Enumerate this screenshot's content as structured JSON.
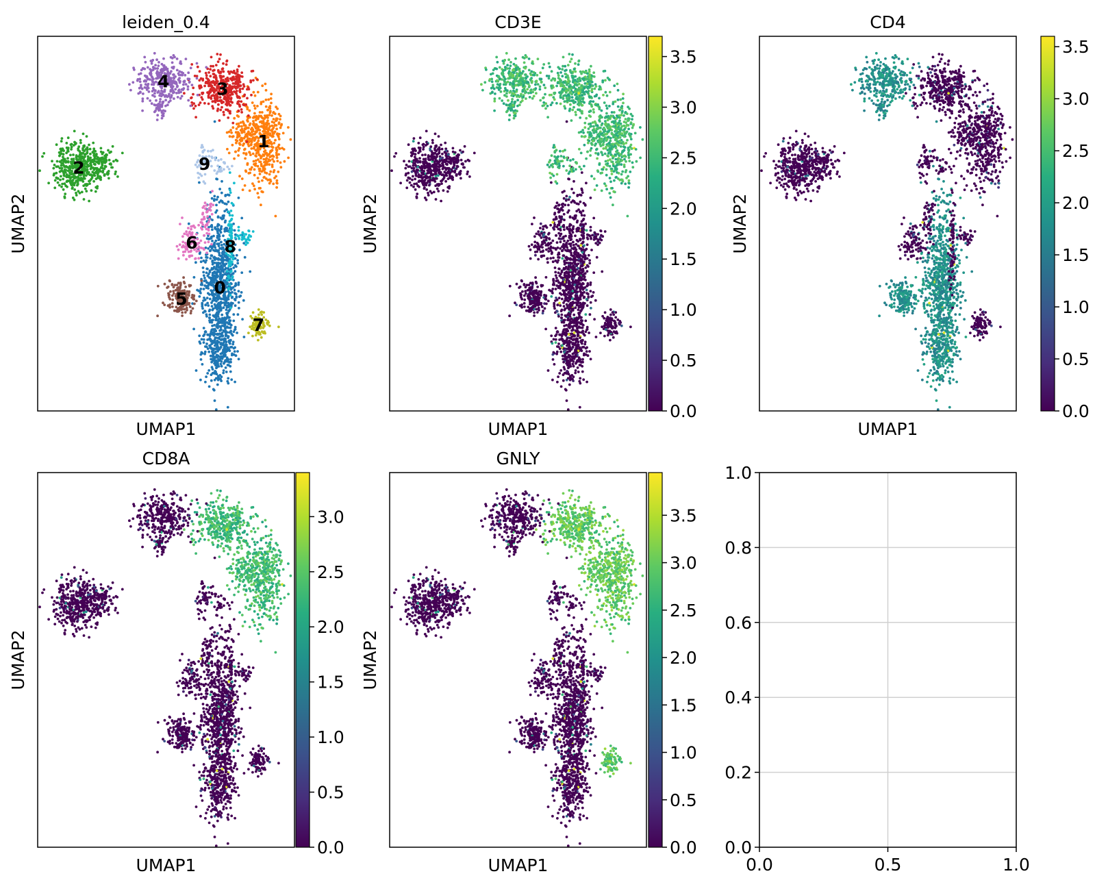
{
  "chart_data": [
    {
      "type": "scatter",
      "title": "leiden_0.4",
      "xlabel": "UMAP1",
      "ylabel": "UMAP2",
      "color_by": "cluster",
      "cluster_labels": [
        "0",
        "1",
        "2",
        "3",
        "4",
        "5",
        "6",
        "7",
        "8",
        "9"
      ],
      "cluster_colors": [
        "#1f77b4",
        "#ff7f0e",
        "#2ca02c",
        "#d62728",
        "#9467bd",
        "#8c564b",
        "#e377c2",
        "#bcbd22",
        "#17becf",
        "#aec7e8"
      ],
      "show_ticks": false
    },
    {
      "type": "scatter",
      "title": "CD3E",
      "xlabel": "UMAP1",
      "ylabel": "UMAP2",
      "color_by": "expression",
      "colormap": "viridis",
      "colorbar_range": [
        0,
        3.7
      ],
      "colorbar_ticks": [
        "0.0",
        "0.5",
        "1.0",
        "1.5",
        "2.0",
        "2.5",
        "3.0",
        "3.5"
      ],
      "high_clusters": [
        "1",
        "3",
        "4",
        "9"
      ],
      "high_level": 0.68
    },
    {
      "type": "scatter",
      "title": "CD4",
      "xlabel": "UMAP1",
      "ylabel": "UMAP2",
      "color_by": "expression",
      "colormap": "viridis",
      "colorbar_range": [
        0,
        3.6
      ],
      "colorbar_ticks": [
        "0.0",
        "0.5",
        "1.0",
        "1.5",
        "2.0",
        "2.5",
        "3.0",
        "3.5"
      ],
      "high_clusters": [
        "0",
        "5",
        "4"
      ],
      "high_level": 0.5
    },
    {
      "type": "scatter",
      "title": "CD8A",
      "xlabel": "UMAP1",
      "ylabel": "UMAP2",
      "color_by": "expression",
      "colormap": "viridis",
      "colorbar_range": [
        0,
        3.4
      ],
      "colorbar_ticks": [
        "0.0",
        "0.5",
        "1.0",
        "1.5",
        "2.0",
        "2.5",
        "3.0"
      ],
      "high_clusters": [
        "3",
        "1"
      ],
      "high_level": 0.68
    },
    {
      "type": "scatter",
      "title": "GNLY",
      "xlabel": "UMAP1",
      "ylabel": "UMAP2",
      "color_by": "expression",
      "colormap": "viridis",
      "colorbar_range": [
        0,
        3.95
      ],
      "colorbar_ticks": [
        "0.0",
        "0.5",
        "1.0",
        "1.5",
        "2.0",
        "2.5",
        "3.0",
        "3.5"
      ],
      "high_clusters": [
        "3",
        "1",
        "7"
      ],
      "high_level": 0.75
    },
    {
      "type": "scatter",
      "title": "",
      "xlabel": "",
      "ylabel": "",
      "xlim": [
        0,
        1
      ],
      "ylim": [
        0,
        1
      ],
      "grid": true,
      "x_ticks": [
        "0.0",
        "0.5",
        "1.0"
      ],
      "y_ticks": [
        "0.0",
        "0.2",
        "0.4",
        "0.6",
        "0.8",
        "1.0"
      ],
      "points": []
    }
  ]
}
